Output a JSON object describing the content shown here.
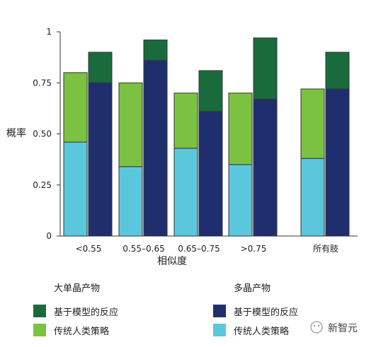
{
  "chart_data": {
    "type": "bar",
    "stacked": true,
    "ylabel": "概率",
    "xlabel": "相似度",
    "ylim": [
      0,
      1
    ],
    "yticks": [
      0,
      0.25,
      0.5,
      0.75,
      1
    ],
    "yticklabels": [
      "0",
      "0.25",
      "0.50",
      "0.75",
      "1"
    ],
    "groups": [
      {
        "label": "<0.55",
        "large_crystal": {
          "traditional": 0.46,
          "model_based": 0.34
        },
        "polycrystal": {
          "traditional": 0.0,
          "model_based": 0.75,
          "total": 0.9
        }
      },
      {
        "label": "0.55–0.65",
        "large_crystal": {
          "traditional": 0.34,
          "model_based": 0.41
        },
        "polycrystal": {
          "traditional": 0.0,
          "model_based": 0.86,
          "total": 0.96
        }
      },
      {
        "label": "0.65–0.75",
        "large_crystal": {
          "traditional": 0.43,
          "model_based": 0.27
        },
        "polycrystal": {
          "traditional": 0.0,
          "model_based": 0.61,
          "total": 0.81
        }
      },
      {
        "label": ">0.75",
        "large_crystal": {
          "traditional": 0.35,
          "model_based": 0.35
        },
        "polycrystal": {
          "traditional": 0.0,
          "model_based": 0.67,
          "total": 0.97
        }
      },
      {
        "label": "所有肢",
        "large_crystal": {
          "traditional": 0.38,
          "model_based": 0.34
        },
        "polycrystal": {
          "traditional": 0.0,
          "model_based": 0.72,
          "total": 0.9
        }
      }
    ],
    "legend": {
      "large_crystal_title": "大单晶产物",
      "polycrystal_title": "多晶产物",
      "model_based_label": "基于模型的反应",
      "traditional_label": "传统人类策略"
    },
    "colors": {
      "large_traditional": "#7CC242",
      "large_model": "#1A6B3C",
      "poly_model": "#1F2F6E",
      "poly_traditional": "#5BC7DC"
    }
  },
  "watermark": {
    "text": "新智元"
  }
}
